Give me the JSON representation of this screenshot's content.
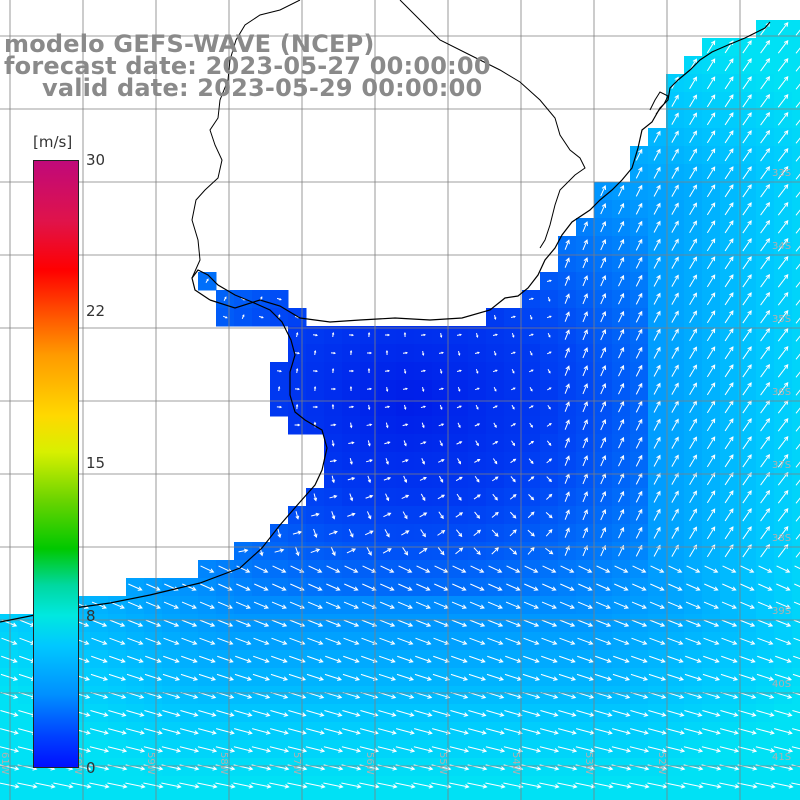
{
  "title": {
    "line1": "modelo GEFS-WAVE (NCEP)",
    "line2": "forecast date: 2023-05-27 00:00:00",
    "line3": "valid date: 2023-05-29 00:00:00"
  },
  "colorbar": {
    "unit": "[m/s]",
    "ticks": [
      "30",
      "22",
      "15",
      "8",
      "0"
    ],
    "min": 0,
    "max": 30,
    "tick_values": [
      30,
      22,
      15,
      8,
      0
    ]
  },
  "map": {
    "field": "wind speed",
    "lon_labels": [
      "61W",
      "60W",
      "59W",
      "58W",
      "57W",
      "56W",
      "55W",
      "54W",
      "53W",
      "52W"
    ],
    "lat_labels": [
      "33S",
      "34S",
      "35S",
      "36S",
      "37S",
      "38S",
      "39S",
      "40S",
      "41S"
    ],
    "colors": {
      "land": "#ffffff",
      "coastline": "#000000",
      "grid": "#7f7f7f",
      "label": "#8a8a8a",
      "arrow": "#ffffff"
    }
  }
}
